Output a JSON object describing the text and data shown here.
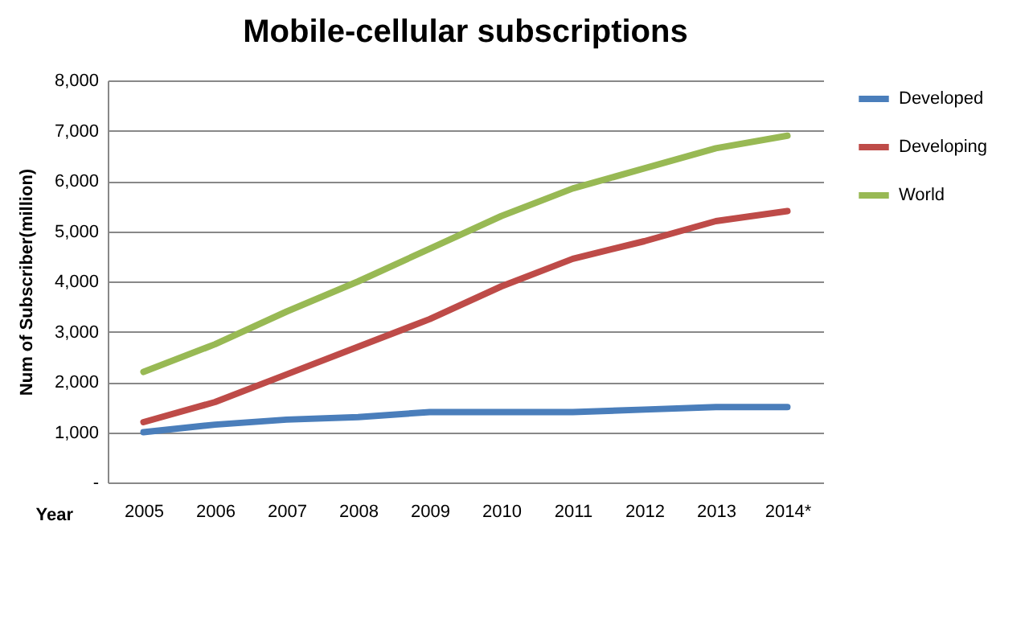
{
  "chart_data": {
    "type": "line",
    "title": "Mobile-cellular subscriptions",
    "xlabel": "Year",
    "ylabel": "Num of Subscriber(million)",
    "categories": [
      "2005",
      "2006",
      "2007",
      "2008",
      "2009",
      "2010",
      "2011",
      "2012",
      "2013",
      "2014*"
    ],
    "series": [
      {
        "name": "Developed",
        "color": "#4a7ebb",
        "values": [
          1000,
          1150,
          1250,
          1300,
          1400,
          1400,
          1400,
          1450,
          1500,
          1500
        ]
      },
      {
        "name": "Developing",
        "color": "#be4b48",
        "values": [
          1200,
          1600,
          2150,
          2700,
          3250,
          3900,
          4450,
          4800,
          5200,
          5400
        ]
      },
      {
        "name": "World",
        "color": "#98b954",
        "values": [
          2200,
          2750,
          3400,
          4000,
          4650,
          5300,
          5850,
          6250,
          6650,
          6900
        ]
      }
    ],
    "ylim": [
      0,
      8000
    ],
    "yticks": [
      {
        "value": 0,
        "label": "-"
      },
      {
        "value": 1000,
        "label": "1,000"
      },
      {
        "value": 2000,
        "label": "2,000"
      },
      {
        "value": 3000,
        "label": "3,000"
      },
      {
        "value": 4000,
        "label": "4,000"
      },
      {
        "value": 5000,
        "label": "5,000"
      },
      {
        "value": 6000,
        "label": "6,000"
      },
      {
        "value": 7000,
        "label": "7,000"
      },
      {
        "value": 8000,
        "label": "8,000"
      }
    ],
    "grid": "y",
    "legend": "right",
    "marker": "none",
    "line_style": "solid"
  }
}
